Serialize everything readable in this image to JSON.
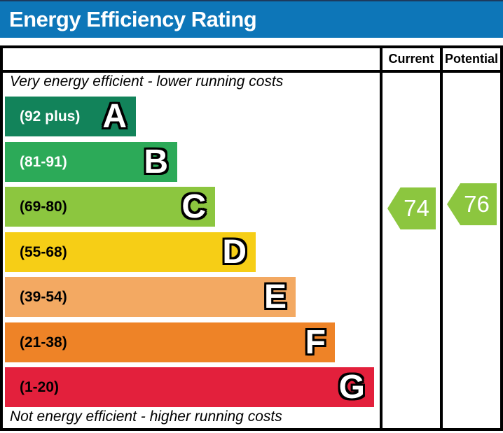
{
  "title_bar": {
    "label": "Energy Efficiency Rating",
    "bg_color": "#0d76b8",
    "text_color": "#ffffff"
  },
  "chart_data": {
    "type": "bar",
    "title": "Energy Efficiency Rating",
    "top_note": "Very energy efficient - lower running costs",
    "bottom_note": "Not energy efficient - higher running costs",
    "columns": {
      "current": "Current",
      "potential": "Potential"
    },
    "bands": [
      {
        "letter": "A",
        "range": "(92 plus)",
        "score_min": 92,
        "score_max": 100,
        "color": "#12835a",
        "range_text_color": "#ffffff"
      },
      {
        "letter": "B",
        "range": "(81-91)",
        "score_min": 81,
        "score_max": 91,
        "color": "#2caa58",
        "range_text_color": "#ffffff"
      },
      {
        "letter": "C",
        "range": "(69-80)",
        "score_min": 69,
        "score_max": 80,
        "color": "#8cc63f",
        "range_text_color": "#000000"
      },
      {
        "letter": "D",
        "range": "(55-68)",
        "score_min": 55,
        "score_max": 68,
        "color": "#f6ce16",
        "range_text_color": "#000000"
      },
      {
        "letter": "E",
        "range": "(39-54)",
        "score_min": 39,
        "score_max": 54,
        "color": "#f3a962",
        "range_text_color": "#000000"
      },
      {
        "letter": "F",
        "range": "(21-38)",
        "score_min": 21,
        "score_max": 38,
        "color": "#ee8327",
        "range_text_color": "#000000"
      },
      {
        "letter": "G",
        "range": "(1-20)",
        "score_min": 1,
        "score_max": 20,
        "color": "#e3203c",
        "range_text_color": "#000000"
      }
    ],
    "ratings": {
      "current": {
        "value": 74,
        "band": "C",
        "arrow_color": "#8cc63f",
        "text_color": "#ffffff"
      },
      "potential": {
        "value": 76,
        "band": "C",
        "arrow_color": "#8cc63f",
        "text_color": "#ffffff"
      }
    }
  }
}
